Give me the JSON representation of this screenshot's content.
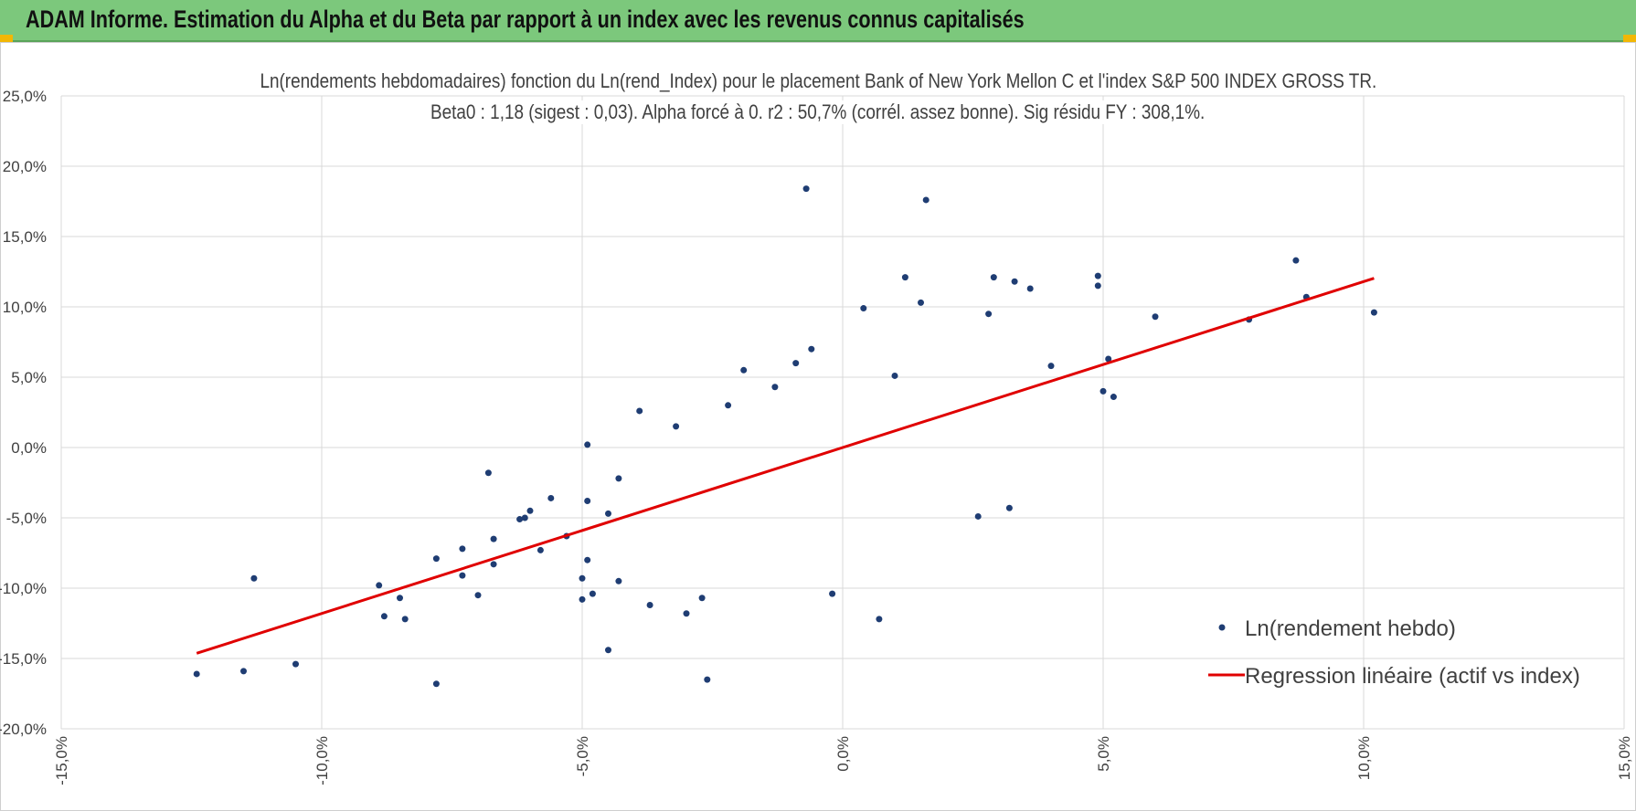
{
  "banner": {
    "title": "ADAM Informe. Estimation du Alpha et du Beta par rapport à un index avec les revenus connus capitalisés",
    "background": "#7cc87c",
    "corner_color": "#f2b705"
  },
  "chart_data": {
    "type": "scatter",
    "title": "Ln(rendements hebdomadaires) fonction du Ln(rend_Index) pour le placement Bank of New York Mellon C et l'index S&P 500 INDEX GROSS TR.",
    "subtitle": "Beta0 : 1,18 (sigest : 0,03). Alpha forcé à 0. r2 : 50,7% (corrél. assez bonne). Sig résidu FY : 308,1%.",
    "xlabel": "",
    "ylabel": "",
    "xlim": [
      -15,
      15
    ],
    "ylim": [
      -20,
      25
    ],
    "x_ticks": [
      "-15,0%",
      "-10,0%",
      "-5,0%",
      "0,0%",
      "5,0%",
      "10,0%",
      "15,0%"
    ],
    "y_ticks": [
      "25,0%",
      "20,0%",
      "15,0%",
      "10,0%",
      "5,0%",
      "0,0%",
      "-5,0%",
      "-10,0%",
      "-15,0%",
      "-20,0%"
    ],
    "grid": true,
    "legend_position": "bottom-right",
    "series": [
      {
        "name": "Ln(rendement hebdo)",
        "kind": "scatter",
        "color": "#1f3d73",
        "points": [
          [
            -12.4,
            -16.1
          ],
          [
            -11.5,
            -15.9
          ],
          [
            -10.5,
            -15.4
          ],
          [
            -11.3,
            -9.3
          ],
          [
            -8.9,
            -9.8
          ],
          [
            -8.8,
            -12.0
          ],
          [
            -8.5,
            -10.7
          ],
          [
            -8.4,
            -12.2
          ],
          [
            -7.8,
            -16.8
          ],
          [
            -7.8,
            -7.9
          ],
          [
            -7.3,
            -9.1
          ],
          [
            -7.3,
            -7.2
          ],
          [
            -7.0,
            -10.5
          ],
          [
            -6.8,
            -1.8
          ],
          [
            -6.7,
            -6.5
          ],
          [
            -6.7,
            -8.3
          ],
          [
            -6.2,
            -5.1
          ],
          [
            -6.1,
            -5.0
          ],
          [
            -6.0,
            -4.5
          ],
          [
            -5.8,
            -7.3
          ],
          [
            -5.6,
            -3.6
          ],
          [
            -5.3,
            -6.3
          ],
          [
            -5.0,
            -10.8
          ],
          [
            -5.0,
            -9.3
          ],
          [
            -4.9,
            -8.0
          ],
          [
            -4.9,
            0.2
          ],
          [
            -4.8,
            -10.4
          ],
          [
            -4.9,
            -3.8
          ],
          [
            -4.5,
            -14.4
          ],
          [
            -4.5,
            -4.7
          ],
          [
            -4.3,
            -2.2
          ],
          [
            -4.3,
            -9.5
          ],
          [
            -3.9,
            2.6
          ],
          [
            -3.7,
            -11.2
          ],
          [
            -3.2,
            1.5
          ],
          [
            -2.7,
            -10.7
          ],
          [
            -3.0,
            -11.8
          ],
          [
            -2.6,
            -16.5
          ],
          [
            -2.2,
            3.0
          ],
          [
            -1.9,
            5.5
          ],
          [
            -1.3,
            4.3
          ],
          [
            -0.9,
            6.0
          ],
          [
            -0.7,
            18.4
          ],
          [
            -0.6,
            7.0
          ],
          [
            -0.2,
            -10.4
          ],
          [
            0.4,
            9.9
          ],
          [
            0.7,
            -12.2
          ],
          [
            1.0,
            5.1
          ],
          [
            1.2,
            12.1
          ],
          [
            1.5,
            10.3
          ],
          [
            1.6,
            17.6
          ],
          [
            2.6,
            -4.9
          ],
          [
            2.8,
            9.5
          ],
          [
            2.9,
            12.1
          ],
          [
            3.2,
            -4.3
          ],
          [
            3.3,
            11.8
          ],
          [
            3.6,
            11.3
          ],
          [
            4.0,
            5.8
          ],
          [
            4.9,
            11.5
          ],
          [
            4.9,
            12.2
          ],
          [
            5.1,
            6.3
          ],
          [
            5.2,
            3.6
          ],
          [
            5.0,
            4.0
          ],
          [
            6.0,
            9.3
          ],
          [
            7.8,
            9.1
          ],
          [
            8.7,
            13.3
          ],
          [
            8.9,
            10.7
          ],
          [
            10.2,
            9.6
          ]
        ]
      },
      {
        "name": "Regression linéaire (actif vs index)",
        "kind": "line",
        "color": "#e00000",
        "slope": 1.18,
        "intercept": 0,
        "x_range": [
          -12.4,
          10.2
        ]
      }
    ]
  }
}
